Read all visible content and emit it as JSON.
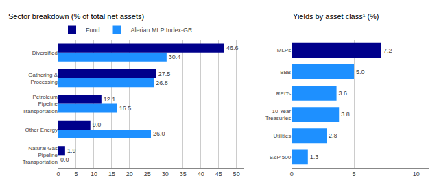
{
  "chart_data": [
    {
      "type": "bar",
      "orientation": "horizontal",
      "title": "Sector breakdown (% of total net assets)",
      "categories": [
        "Natural Gas\nPipeline\nTransportation",
        "Other Energy",
        "Petroleum\nPipeline\nTransportation",
        "Gathering &\nProcessing",
        "Diversified"
      ],
      "series": [
        {
          "name": "Fund",
          "color": "#00008B",
          "values": [
            1.9,
            9.0,
            12.1,
            27.5,
            46.6
          ],
          "value_labels": [
            "1.9",
            "9.0",
            "12.1",
            "27.5",
            "46.6"
          ]
        },
        {
          "name": "Alerian MLP Index-GR",
          "color": "#1E90FF",
          "values": [
            0.0,
            26.0,
            16.5,
            26.8,
            30.4
          ],
          "value_labels": [
            "0.0",
            "26.0",
            "16.5",
            "26.8",
            "30.4"
          ]
        }
      ],
      "xlim": [
        0,
        52
      ],
      "xticks": [
        0,
        5,
        10,
        15,
        20,
        25,
        30,
        35,
        40,
        45,
        50
      ],
      "grid": true,
      "legend": "upper left",
      "data_labels": true
    },
    {
      "type": "bar",
      "orientation": "horizontal",
      "title": "Yields by asset class¹ (%)",
      "categories": [
        "S&P 500",
        "Utilities",
        "10-Year\nTreasuries",
        "REITs",
        "BBB",
        "MLPs"
      ],
      "values": [
        1.3,
        2.8,
        3.8,
        3.6,
        5.0,
        7.2
      ],
      "value_labels": [
        "1.3",
        "2.8",
        "3.8",
        "3.6",
        "5.0",
        "7.2"
      ],
      "colors": [
        "#1E90FF",
        "#1E90FF",
        "#1E90FF",
        "#1E90FF",
        "#1E90FF",
        "#00008B"
      ],
      "xlim": [
        0,
        11
      ],
      "xticks": [
        0,
        5,
        10
      ],
      "grid": true,
      "data_labels": true
    }
  ]
}
